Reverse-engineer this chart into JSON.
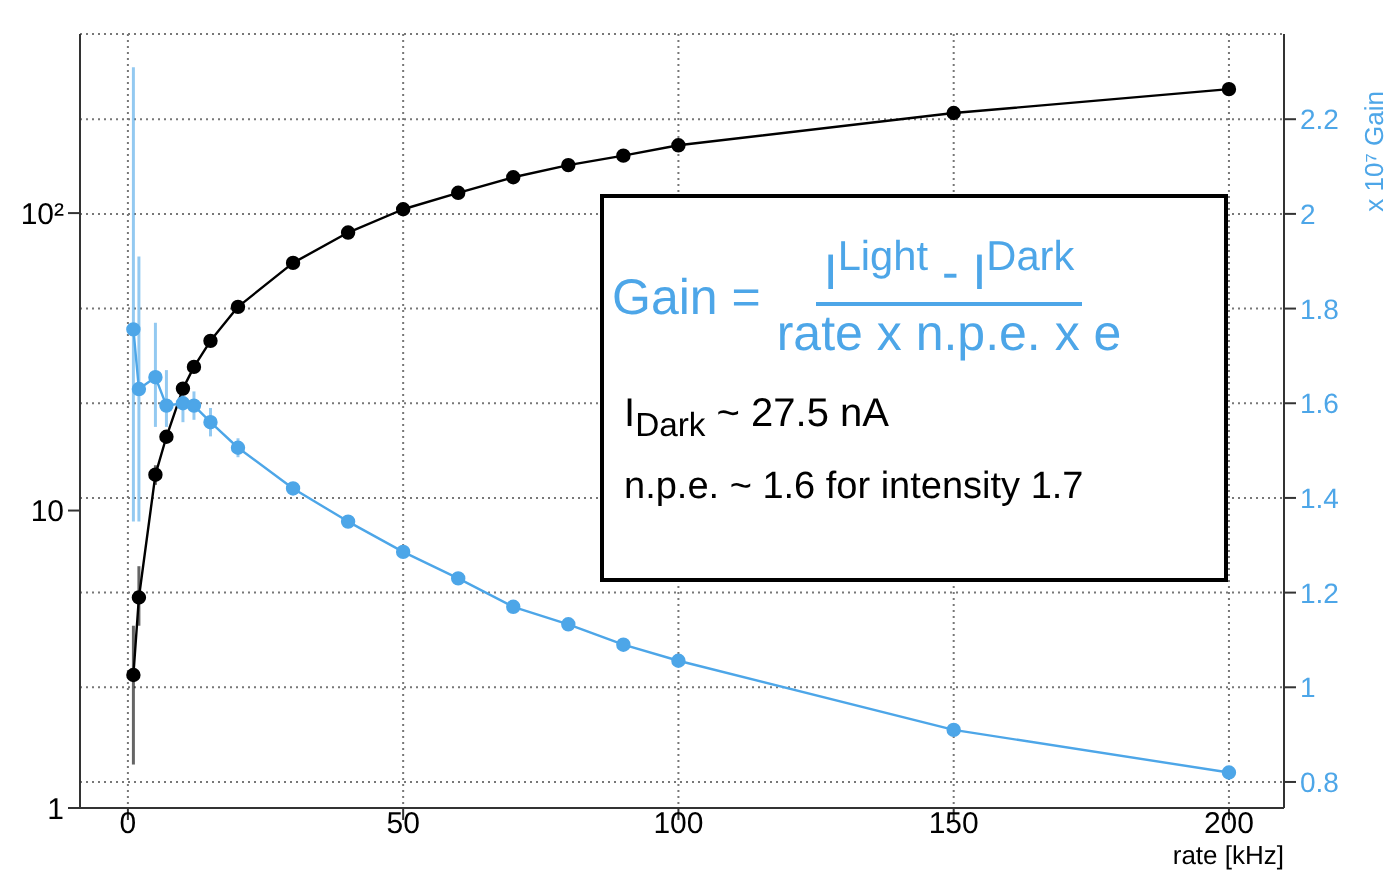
{
  "chart_data": {
    "type": "line",
    "xlabel": "rate [kHz]",
    "y2label": "x 10⁷ Gain",
    "x": [
      1,
      2,
      5,
      7,
      10,
      12,
      15,
      20,
      30,
      40,
      50,
      60,
      70,
      80,
      90,
      100,
      150,
      200
    ],
    "series": [
      {
        "color": "#000000",
        "values": [
          2.8,
          5.1,
          13.2,
          17.7,
          25.7,
          30.4,
          37.2,
          48.4,
          68,
          86,
          103,
          117,
          132,
          145,
          156,
          169,
          217,
          261
        ],
        "errors": [
          [
            1.4,
            4.1
          ],
          [
            4.1,
            6.5
          ],
          [
            12.2,
            14.2
          ],
          null,
          null,
          null,
          null,
          null,
          null,
          null,
          null,
          null,
          null,
          null,
          null,
          null,
          null,
          null
        ]
      },
      {
        "color": "#4da6e8",
        "axis": "y2",
        "values": [
          1.756,
          1.63,
          1.655,
          1.595,
          1.6,
          1.595,
          1.56,
          1.506,
          1.42,
          1.35,
          1.286,
          1.23,
          1.17,
          1.133,
          1.09,
          1.056,
          0.91,
          0.82
        ],
        "errors": [
          [
            1.35,
            2.31
          ],
          [
            1.35,
            1.91
          ],
          [
            1.55,
            1.77
          ],
          [
            1.55,
            1.67
          ],
          0.04,
          0.03,
          0.03,
          0.02,
          null,
          null,
          null,
          null,
          null,
          null,
          null,
          null,
          null,
          null
        ]
      }
    ],
    "log": "y",
    "xlim": [
      -8.7,
      210
    ],
    "xticks": [
      0,
      50,
      100,
      150,
      200
    ],
    "ylim": [
      1,
      400
    ],
    "yticks": [
      1,
      10,
      {
        "value": 100,
        "label": "10²"
      }
    ],
    "y2lim": [
      0.745,
      2.38
    ],
    "y2ticks": [
      {
        "value": 0.8,
        "label": "0.8"
      },
      1,
      {
        "value": 1.2,
        "label": "1.2"
      },
      {
        "value": 1.4,
        "label": "1.4"
      },
      {
        "value": 1.6,
        "label": "1.6"
      },
      {
        "value": 1.8,
        "label": "1.8"
      },
      2,
      {
        "value": 2.2,
        "label": "2.2"
      }
    ],
    "grid": true,
    "legend": false,
    "marker": "circle",
    "line_style": "solid",
    "annotations": [
      "Gain =",
      "I$^{Light}$ - I$^{Dark}$",
      "rate x n.p.e. x e",
      "I$_{Dark}$ ~ 27.5 nA",
      "n.p.e. ~ 1.6 for intensity 1.7"
    ]
  }
}
